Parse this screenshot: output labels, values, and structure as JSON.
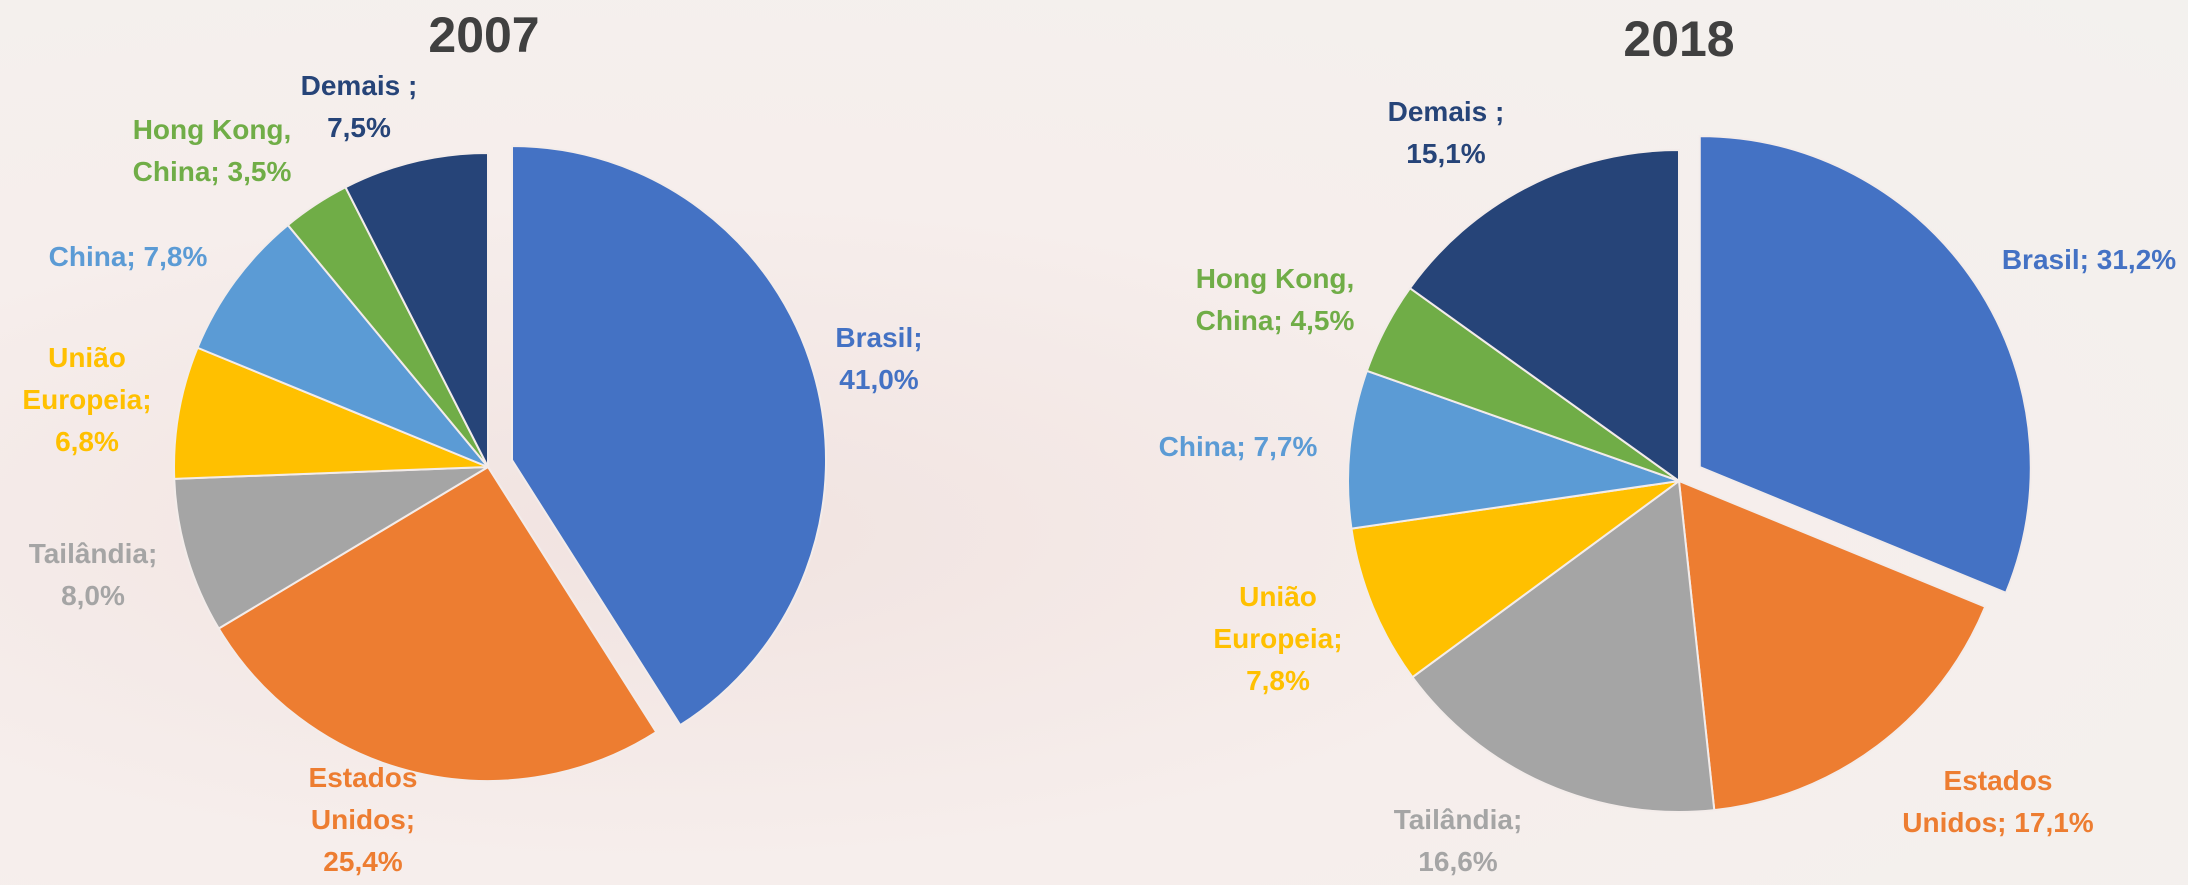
{
  "chart_data": [
    {
      "type": "pie",
      "title": "2007",
      "categories": [
        "Brasil;",
        "Estados Unidos;",
        "Tailândia;",
        "União Europeia;",
        "China;",
        "Hong Kong, China;",
        "Demais ;"
      ],
      "values": [
        41.0,
        25.4,
        8.0,
        6.8,
        7.8,
        3.5,
        7.5
      ],
      "value_labels": [
        "41,0%",
        "25,4%",
        "8,0%",
        "6,8%",
        "7,8%",
        "3,5%",
        "7,5%"
      ],
      "colors": [
        "#4472c4",
        "#ed7d31",
        "#a5a5a5",
        "#ffc000",
        "#5b9bd5",
        "#70ad47",
        "#264478"
      ]
    },
    {
      "type": "pie",
      "title": "2018",
      "categories": [
        "Brasil;",
        "Estados Unidos;",
        "Tailândia;",
        "União Europeia;",
        "China;",
        "Hong Kong, China;",
        "Demais ;"
      ],
      "values": [
        31.2,
        17.1,
        16.6,
        7.8,
        7.7,
        4.5,
        15.1
      ],
      "value_labels": [
        "31,2%",
        "17,1%",
        "16,6%",
        "7,8%",
        "7,7%",
        "4,5%",
        "15,1%"
      ],
      "colors": [
        "#4472c4",
        "#ed7d31",
        "#a5a5a5",
        "#ffc000",
        "#5b9bd5",
        "#70ad47",
        "#264478"
      ]
    }
  ]
}
